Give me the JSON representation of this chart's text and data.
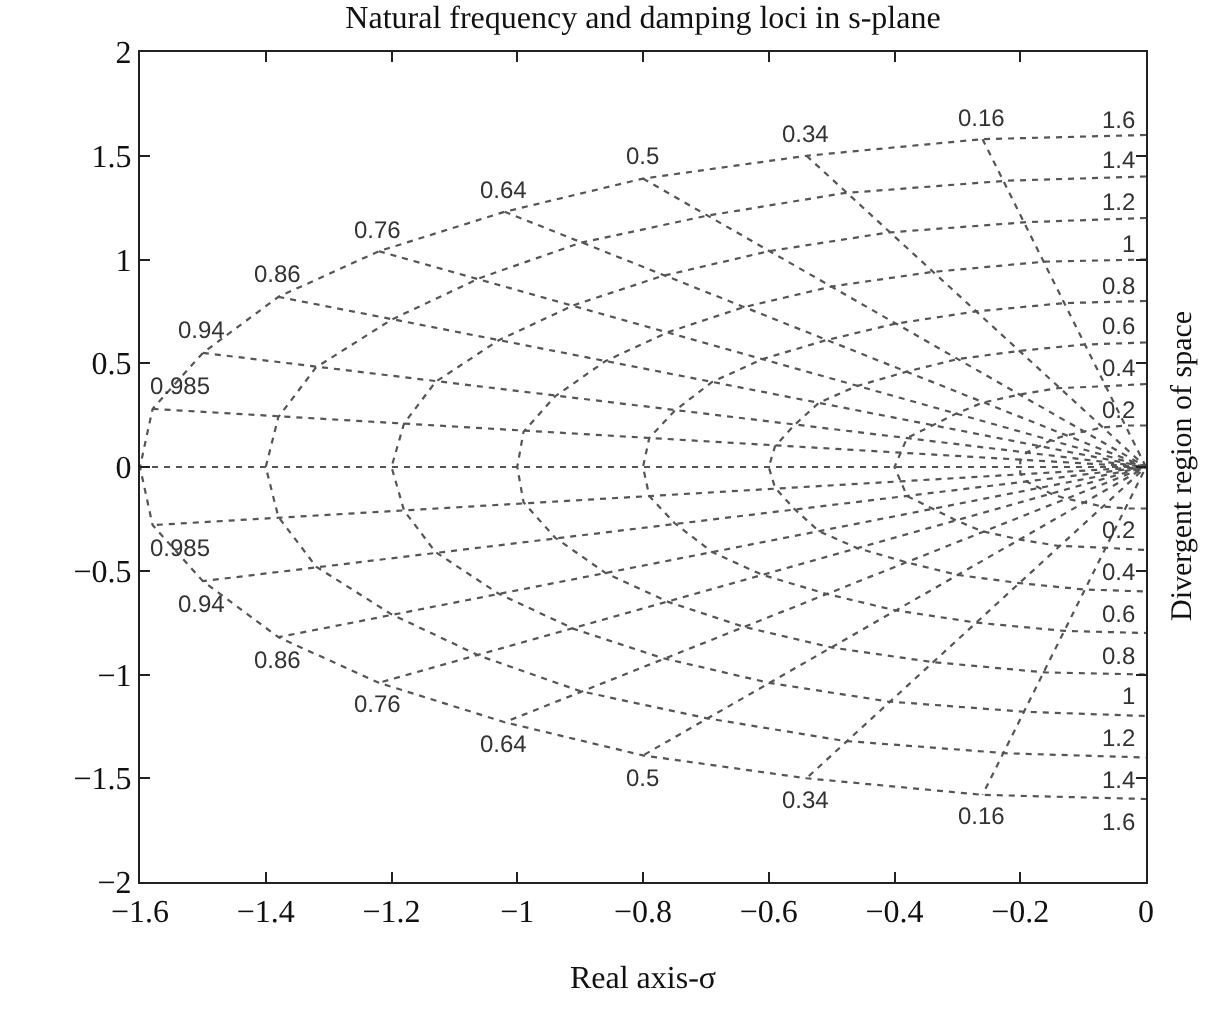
{
  "chart_data": {
    "type": "line",
    "title": "Natural frequency and damping loci in s-plane",
    "xlabel": "Real axis-σ",
    "y2label": "Divergent region of space",
    "xlim": [
      -1.6,
      0
    ],
    "ylim": [
      -2,
      2
    ],
    "xticks": [
      -1.6,
      -1.4,
      -1.2,
      -1,
      -0.8,
      -0.6,
      -0.4,
      -0.2,
      0
    ],
    "yticks": [
      -2,
      -1.5,
      -1,
      -0.5,
      0,
      0.5,
      1,
      1.5,
      2
    ],
    "marker": "none",
    "line_style": "dotted",
    "series": [
      {
        "color": "#555555",
        "x": [
          0,
          -0.03,
          -0.07,
          -0.1,
          -0.13,
          -0.15,
          -0.17,
          -0.19,
          -0.2,
          -0.2,
          -0.2,
          -0.19,
          -0.17,
          -0.15,
          -0.13,
          -0.1,
          -0.07,
          -0.03,
          0
        ],
        "values": [
          0.2,
          0.2,
          0.19,
          0.17,
          0.15,
          0.13,
          0.1,
          0.07,
          0.03,
          0,
          -0.03,
          -0.07,
          -0.1,
          -0.13,
          -0.15,
          -0.17,
          -0.19,
          -0.2,
          -0.2
        ]
      },
      {
        "color": "#555555",
        "x": [
          0,
          -0.06,
          -0.14,
          -0.2,
          -0.26,
          -0.3,
          -0.34,
          -0.38,
          -0.39,
          -0.4,
          -0.39,
          -0.38,
          -0.34,
          -0.3,
          -0.26,
          -0.2,
          -0.14,
          -0.06,
          0
        ],
        "values": [
          0.4,
          0.39,
          0.38,
          0.35,
          0.31,
          0.26,
          0.2,
          0.14,
          0.07,
          0,
          -0.07,
          -0.14,
          -0.2,
          -0.26,
          -0.31,
          -0.35,
          -0.38,
          -0.39,
          -0.4
        ]
      },
      {
        "color": "#555555",
        "x": [
          0,
          -0.1,
          -0.2,
          -0.3,
          -0.38,
          -0.46,
          -0.52,
          -0.56,
          -0.59,
          -0.6,
          -0.59,
          -0.56,
          -0.52,
          -0.46,
          -0.38,
          -0.3,
          -0.2,
          -0.1,
          0
        ],
        "values": [
          0.6,
          0.59,
          0.56,
          0.52,
          0.46,
          0.39,
          0.31,
          0.2,
          0.1,
          0,
          -0.1,
          -0.2,
          -0.31,
          -0.39,
          -0.46,
          -0.52,
          -0.56,
          -0.59,
          -0.6
        ]
      },
      {
        "color": "#555555",
        "x": [
          0,
          -0.13,
          -0.27,
          -0.4,
          -0.51,
          -0.61,
          -0.69,
          -0.75,
          -0.79,
          -0.8,
          -0.79,
          -0.75,
          -0.69,
          -0.61,
          -0.51,
          -0.4,
          -0.27,
          -0.13,
          0
        ],
        "values": [
          0.8,
          0.79,
          0.75,
          0.69,
          0.61,
          0.52,
          0.41,
          0.27,
          0.14,
          0,
          -0.14,
          -0.27,
          -0.41,
          -0.52,
          -0.61,
          -0.69,
          -0.75,
          -0.79,
          -0.8
        ]
      },
      {
        "color": "#555555",
        "x": [
          0,
          -0.16,
          -0.34,
          -0.5,
          -0.64,
          -0.76,
          -0.86,
          -0.94,
          -0.99,
          -1,
          -0.99,
          -0.94,
          -0.86,
          -0.76,
          -0.64,
          -0.5,
          -0.34,
          -0.16,
          0
        ],
        "values": [
          1,
          0.99,
          0.94,
          0.87,
          0.77,
          0.65,
          0.51,
          0.34,
          0.17,
          0,
          -0.17,
          -0.34,
          -0.51,
          -0.65,
          -0.77,
          -0.87,
          -0.94,
          -0.99,
          -1
        ]
      },
      {
        "color": "#555555",
        "x": [
          0,
          -0.19,
          -0.41,
          -0.6,
          -0.77,
          -0.91,
          -1.03,
          -1.13,
          -1.18,
          -1.2,
          -1.18,
          -1.13,
          -1.03,
          -0.91,
          -0.77,
          -0.6,
          -0.41,
          -0.19,
          0
        ],
        "values": [
          1.2,
          1.18,
          1.13,
          1.04,
          0.92,
          0.78,
          0.61,
          0.41,
          0.21,
          0,
          -0.21,
          -0.41,
          -0.61,
          -0.78,
          -0.92,
          -1.04,
          -1.13,
          -1.18,
          -1.2
        ]
      },
      {
        "color": "#555555",
        "x": [
          0,
          -0.22,
          -0.48,
          -0.7,
          -0.9,
          -1.06,
          -1.2,
          -1.32,
          -1.38,
          -1.4,
          -1.38,
          -1.32,
          -1.2,
          -1.06,
          -0.9,
          -0.7,
          -0.48,
          -0.22,
          0
        ],
        "values": [
          1.4,
          1.38,
          1.32,
          1.21,
          1.08,
          0.91,
          0.71,
          0.48,
          0.24,
          0,
          -0.24,
          -0.48,
          -0.71,
          -0.91,
          -1.08,
          -1.21,
          -1.32,
          -1.38,
          -1.4
        ]
      },
      {
        "color": "#555555",
        "x": [
          0,
          -0.26,
          -0.54,
          -0.8,
          -1.02,
          -1.22,
          -1.38,
          -1.5,
          -1.58,
          -1.6,
          -1.58,
          -1.5,
          -1.38,
          -1.22,
          -1.02,
          -0.8,
          -0.54,
          -0.26,
          0
        ],
        "values": [
          1.6,
          1.58,
          1.5,
          1.39,
          1.23,
          1.04,
          0.82,
          0.55,
          0.28,
          0,
          -0.28,
          -0.55,
          -0.82,
          -1.04,
          -1.23,
          -1.39,
          -1.5,
          -1.58,
          -1.6
        ]
      },
      {
        "color": "#555555",
        "x": [
          -0.26,
          0,
          -0.26
        ],
        "values": [
          1.58,
          0,
          -1.58
        ]
      },
      {
        "color": "#555555",
        "x": [
          -0.54,
          0,
          -0.54
        ],
        "values": [
          1.5,
          0,
          -1.5
        ]
      },
      {
        "color": "#555555",
        "x": [
          -0.8,
          0,
          -0.8
        ],
        "values": [
          1.39,
          0,
          -1.39
        ]
      },
      {
        "color": "#555555",
        "x": [
          -1.02,
          0,
          -1.02
        ],
        "values": [
          1.23,
          0,
          -1.23
        ]
      },
      {
        "color": "#555555",
        "x": [
          -1.22,
          0,
          -1.22
        ],
        "values": [
          1.04,
          0,
          -1.04
        ]
      },
      {
        "color": "#555555",
        "x": [
          -1.38,
          0,
          -1.38
        ],
        "values": [
          0.82,
          0,
          -0.82
        ]
      },
      {
        "color": "#555555",
        "x": [
          -1.5,
          0,
          -1.5
        ],
        "values": [
          0.55,
          0,
          -0.55
        ]
      },
      {
        "color": "#555555",
        "x": [
          -1.58,
          0,
          -1.58
        ],
        "values": [
          0.28,
          0,
          -0.28
        ]
      },
      {
        "color": "#555555",
        "x": [
          -1.6,
          0
        ],
        "values": [
          0,
          0
        ]
      }
    ],
    "annotations": [
      {
        "text": "0.16",
        "x": -0.26,
        "y": 1.58
      },
      {
        "text": "0.34",
        "x": -0.54,
        "y": 1.5
      },
      {
        "text": "0.5",
        "x": -0.8,
        "y": 1.39
      },
      {
        "text": "0.64",
        "x": -1.02,
        "y": 1.23
      },
      {
        "text": "0.76",
        "x": -1.22,
        "y": 1.04
      },
      {
        "text": "0.86",
        "x": -1.38,
        "y": 0.82
      },
      {
        "text": "0.94",
        "x": -1.5,
        "y": 0.55
      },
      {
        "text": "0.985",
        "x": -1.58,
        "y": 0.28
      },
      {
        "text": "0.985",
        "x": -1.58,
        "y": -0.28
      },
      {
        "text": "0.94",
        "x": -1.5,
        "y": -0.55
      },
      {
        "text": "0.86",
        "x": -1.38,
        "y": -0.82
      },
      {
        "text": "0.76",
        "x": -1.22,
        "y": -1.04
      },
      {
        "text": "0.64",
        "x": -1.02,
        "y": -1.23
      },
      {
        "text": "0.5",
        "x": -0.8,
        "y": -1.39
      },
      {
        "text": "0.34",
        "x": -0.54,
        "y": -1.5
      },
      {
        "text": "0.16",
        "x": -0.26,
        "y": -1.58
      },
      {
        "text": "1.6",
        "x": 0,
        "y": 1.6
      },
      {
        "text": "1.4",
        "x": 0,
        "y": 1.4
      },
      {
        "text": "1.2",
        "x": 0,
        "y": 1.2
      },
      {
        "text": "1",
        "x": 0,
        "y": 1
      },
      {
        "text": "0.8",
        "x": 0,
        "y": 0.8
      },
      {
        "text": "0.6",
        "x": 0,
        "y": 0.6
      },
      {
        "text": "0.4",
        "x": 0,
        "y": 0.4
      },
      {
        "text": "0.2",
        "x": 0,
        "y": 0.2
      },
      {
        "text": "0.2",
        "x": 0,
        "y": -0.2
      },
      {
        "text": "0.4",
        "x": 0,
        "y": -0.4
      },
      {
        "text": "0.6",
        "x": 0,
        "y": -0.6
      },
      {
        "text": "0.8",
        "x": 0,
        "y": -0.8
      },
      {
        "text": "1",
        "x": 0,
        "y": -1
      },
      {
        "text": "1.2",
        "x": 0,
        "y": -1.2
      },
      {
        "text": "1.4",
        "x": 0,
        "y": -1.4
      },
      {
        "text": "1.6",
        "x": 0,
        "y": -1.6
      }
    ]
  }
}
